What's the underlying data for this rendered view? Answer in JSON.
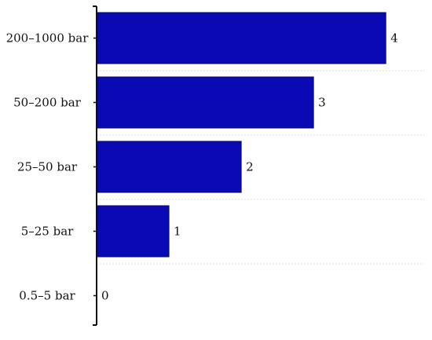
{
  "chart_data": {
    "type": "bar",
    "orientation": "horizontal",
    "categories": [
      "200–1000 bar",
      "50–200 bar",
      "25–50 bar",
      "5–25 bar",
      "0.5–5 bar"
    ],
    "values": [
      4,
      3,
      2,
      1,
      0
    ],
    "data_labels": [
      "4",
      "3",
      "2",
      "1",
      "0"
    ],
    "xlim": [
      0,
      4.15
    ],
    "grid": "none",
    "legend": "none",
    "title": "",
    "xlabel": "",
    "ylabel": ""
  },
  "colors": {
    "bar_fill": "#0a0ab4",
    "bar_stroke": "#050566",
    "axis": "#111111",
    "separator": "#dddddd"
  }
}
